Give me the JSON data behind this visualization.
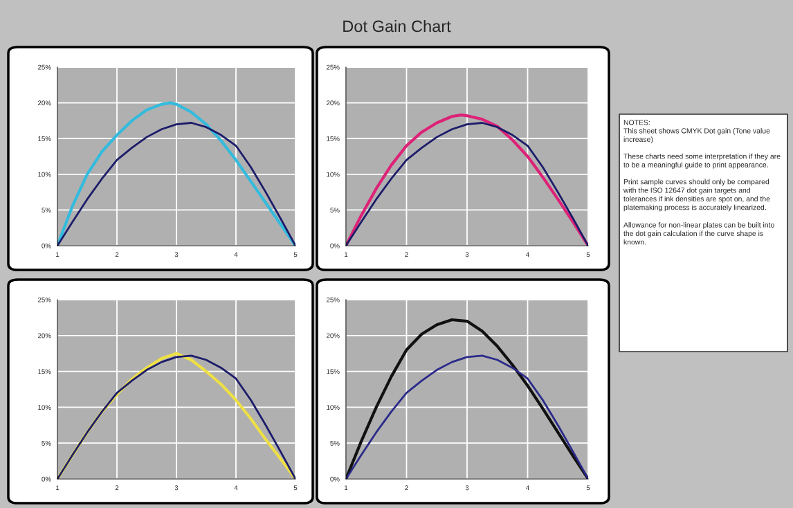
{
  "chart_data": [
    {
      "type": "other",
      "title": "Dot Gain Chart"
    },
    {
      "type": "line",
      "xlim": [
        1,
        5
      ],
      "ylim": [
        0,
        25
      ],
      "xticks": [
        1,
        2,
        3,
        4,
        5
      ],
      "yticks": [
        {
          "value": 0,
          "label": "0%"
        },
        {
          "value": 5,
          "label": "5%"
        },
        {
          "value": 10,
          "label": "10%"
        },
        {
          "value": 15,
          "label": "15%"
        },
        {
          "value": 20,
          "label": "20%"
        },
        {
          "value": 25,
          "label": "25%"
        }
      ],
      "grid": true,
      "series": [
        {
          "color": "#33bbdd",
          "x": [
            1,
            1.25,
            1.5,
            1.75,
            2,
            2.25,
            2.5,
            2.75,
            2.9,
            3,
            3.25,
            3.5,
            3.75,
            4,
            4.25,
            4.5,
            4.75,
            5
          ],
          "values": [
            0,
            5.5,
            10,
            13.2,
            15.5,
            17.5,
            19,
            19.8,
            20,
            19.8,
            18.7,
            17,
            14.7,
            12,
            9,
            6,
            3,
            0
          ]
        },
        {
          "color": "#1c1c6a",
          "x": [
            1,
            1.25,
            1.5,
            1.75,
            2,
            2.25,
            2.5,
            2.75,
            3,
            3.25,
            3.5,
            3.75,
            4,
            4.25,
            4.5,
            4.75,
            5
          ],
          "values": [
            0,
            3.3,
            6.5,
            9.4,
            12,
            13.7,
            15.2,
            16.3,
            17,
            17.2,
            16.6,
            15.5,
            14,
            11,
            7.5,
            3.8,
            0
          ]
        }
      ]
    },
    {
      "type": "line",
      "xlim": [
        1,
        5
      ],
      "ylim": [
        0,
        25
      ],
      "xticks": [
        1,
        2,
        3,
        4,
        5
      ],
      "yticks": [
        {
          "value": 0,
          "label": "0%"
        },
        {
          "value": 5,
          "label": "5%"
        },
        {
          "value": 10,
          "label": "10%"
        },
        {
          "value": 15,
          "label": "15%"
        },
        {
          "value": 20,
          "label": "20%"
        },
        {
          "value": 25,
          "label": "25%"
        }
      ],
      "grid": true,
      "series": [
        {
          "color": "#dd2277",
          "x": [
            1,
            1.25,
            1.5,
            1.75,
            2,
            2.25,
            2.5,
            2.75,
            2.9,
            3,
            3.25,
            3.5,
            3.75,
            4,
            4.25,
            4.5,
            4.75,
            5
          ],
          "values": [
            0,
            4.2,
            8,
            11.3,
            14,
            15.9,
            17.2,
            18.1,
            18.3,
            18.2,
            17.7,
            16.7,
            14.8,
            12.5,
            9.6,
            6.5,
            3.3,
            0
          ]
        },
        {
          "color": "#1c1c6a",
          "x": [
            1,
            1.25,
            1.5,
            1.75,
            2,
            2.25,
            2.5,
            2.75,
            3,
            3.25,
            3.5,
            3.75,
            4,
            4.25,
            4.5,
            4.75,
            5
          ],
          "values": [
            0,
            3.3,
            6.5,
            9.4,
            12,
            13.7,
            15.2,
            16.3,
            17,
            17.2,
            16.6,
            15.5,
            14,
            11,
            7.5,
            3.8,
            0
          ]
        }
      ]
    },
    {
      "type": "line",
      "xlim": [
        1,
        5
      ],
      "ylim": [
        0,
        25
      ],
      "xticks": [
        1,
        2,
        3,
        4,
        5
      ],
      "yticks": [
        {
          "value": 0,
          "label": "0%"
        },
        {
          "value": 5,
          "label": "5%"
        },
        {
          "value": 10,
          "label": "10%"
        },
        {
          "value": 15,
          "label": "15%"
        },
        {
          "value": 20,
          "label": "20%"
        },
        {
          "value": 25,
          "label": "25%"
        }
      ],
      "grid": true,
      "series": [
        {
          "color": "#eee044",
          "x": [
            1,
            1.25,
            1.5,
            1.75,
            2,
            2.25,
            2.5,
            2.75,
            3,
            3.25,
            3.5,
            3.75,
            4,
            4.25,
            4.5,
            4.75,
            5
          ],
          "values": [
            0,
            3.3,
            6.5,
            9.4,
            11.8,
            13.9,
            15.5,
            16.8,
            17.5,
            16.6,
            15,
            13.2,
            11,
            8.4,
            5.5,
            2.8,
            0
          ]
        },
        {
          "color": "#1c1c6a",
          "x": [
            1,
            1.25,
            1.5,
            1.75,
            2,
            2.25,
            2.5,
            2.75,
            3,
            3.25,
            3.5,
            3.75,
            4,
            4.25,
            4.5,
            4.75,
            5
          ],
          "values": [
            0,
            3.3,
            6.5,
            9.4,
            12,
            13.7,
            15.2,
            16.3,
            17,
            17.2,
            16.6,
            15.5,
            14,
            11,
            7.5,
            3.8,
            0
          ]
        }
      ]
    },
    {
      "type": "line",
      "xlim": [
        1,
        5
      ],
      "ylim": [
        0,
        25
      ],
      "xticks": [
        1,
        2,
        3,
        4,
        5
      ],
      "yticks": [
        {
          "value": 0,
          "label": "0%"
        },
        {
          "value": 5,
          "label": "5%"
        },
        {
          "value": 10,
          "label": "10%"
        },
        {
          "value": 15,
          "label": "15%"
        },
        {
          "value": 20,
          "label": "20%"
        },
        {
          "value": 25,
          "label": "25%"
        }
      ],
      "grid": true,
      "series": [
        {
          "color": "#111111",
          "x": [
            1,
            1.25,
            1.5,
            1.75,
            2,
            2.25,
            2.5,
            2.75,
            3,
            3.25,
            3.5,
            3.75,
            4,
            4.25,
            4.5,
            4.75,
            5
          ],
          "values": [
            0,
            5.2,
            10,
            14.3,
            18,
            20.2,
            21.5,
            22.2,
            22,
            20.6,
            18.5,
            15.9,
            13,
            9.8,
            6.5,
            3.2,
            0
          ]
        },
        {
          "color": "#2a2a8a",
          "x": [
            1,
            1.25,
            1.5,
            1.75,
            2,
            2.25,
            2.5,
            2.75,
            3,
            3.25,
            3.5,
            3.75,
            4,
            4.25,
            4.5,
            4.75,
            5
          ],
          "values": [
            0,
            3.3,
            6.5,
            9.4,
            12,
            13.7,
            15.2,
            16.3,
            17,
            17.2,
            16.6,
            15.5,
            14,
            11,
            7.5,
            3.8,
            0
          ]
        }
      ]
    },
    {
      "type": "other",
      "title": "NOTES:",
      "annotations": [
        "This sheet shows CMYK Dot gain (Tone value increase)",
        "These charts need some interpretation if they are to be a meaningful guide to print appearance.",
        "Print sample curves should only be compared with the ISO 12647 dot gain targets and tolerances if ink densities are spot on, and the platemaking process is accurately linearized.",
        "Allowance for non-linear plates can be built into the dot gain calculation if the curve shape is known."
      ]
    }
  ]
}
